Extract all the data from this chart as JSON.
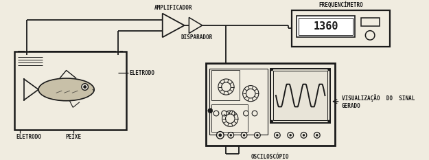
{
  "bg_color": "#f0ece0",
  "line_color": "#1a1a1a",
  "lw": 1.1,
  "labels": {
    "amplificador": "AMPLIFICADOR",
    "disparador": "DISPARADOR",
    "frequencimetro": "FREQUENCÍMETRO",
    "eletrodo_top": "ELETRODO",
    "eletrodo_bot": "ELETRODO",
    "peixe": "PEIXE",
    "osciloscopio": "OSCILOSCÓPIO",
    "vis_line1": "VISUALIZAÇÃO  DO  SINAL",
    "vis_line2": "GERADO"
  },
  "display_value": "1360",
  "font_size": 5.5
}
